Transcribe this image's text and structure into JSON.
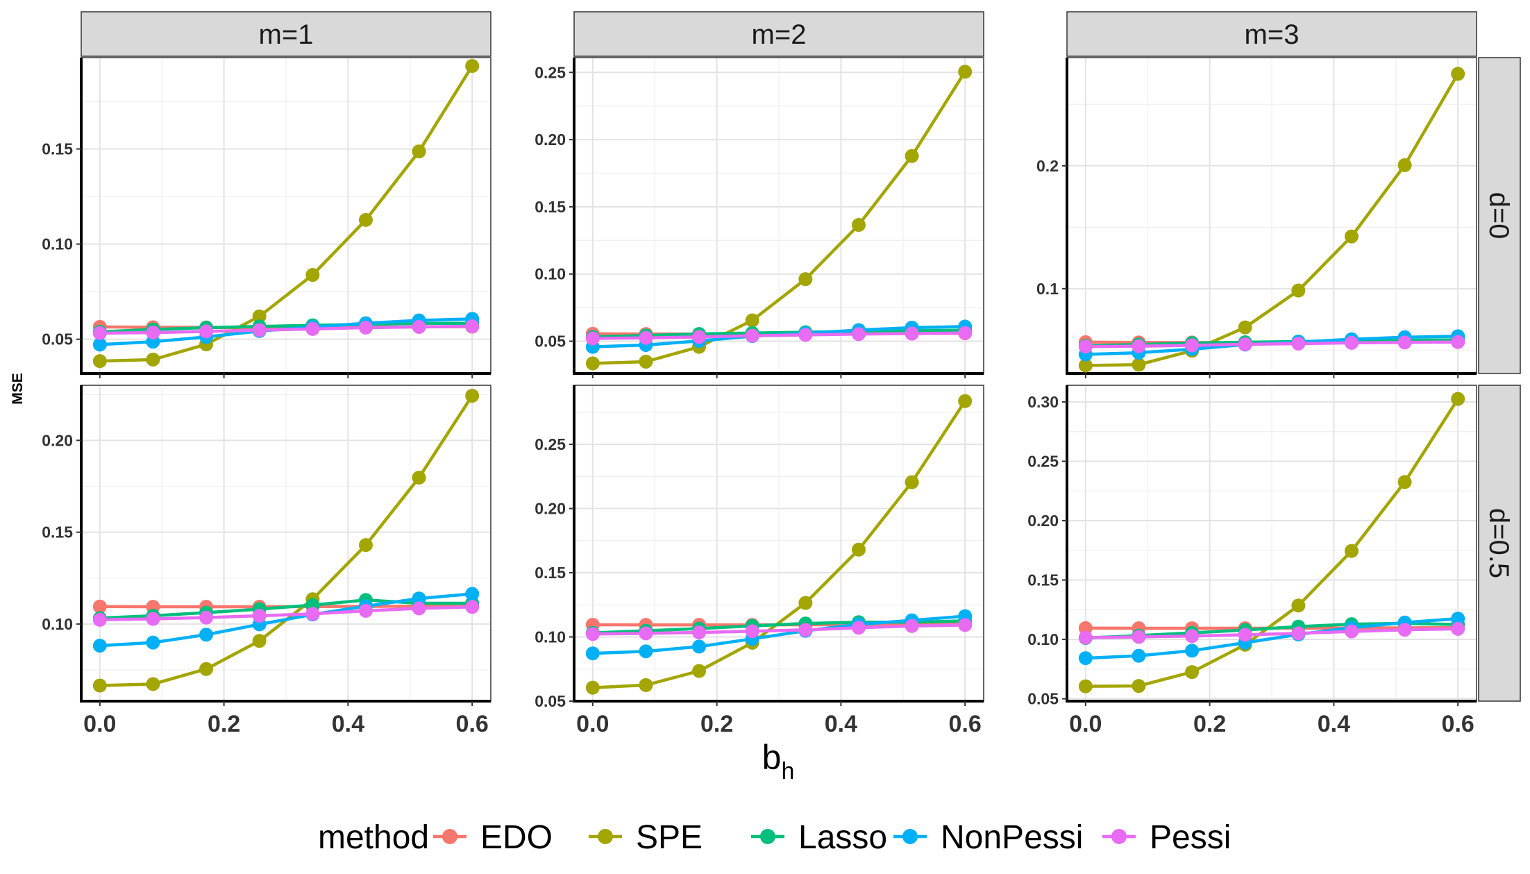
{
  "chart_data": {
    "type": "line",
    "ylabel": "MSE",
    "xlabel_main": "b",
    "xlabel_sub": "h",
    "legend": {
      "title": "method",
      "position": "bottom",
      "items": [
        "EDO",
        "SPE",
        "Lasso",
        "NonPessi",
        "Pessi"
      ]
    },
    "colors": {
      "EDO": "#F8766D",
      "SPE": "#A3A500",
      "Lasso": "#00BF7D",
      "NonPessi": "#00B0F6",
      "Pessi": "#E76BF3"
    },
    "grid": true,
    "x": [
      0.0,
      0.0857,
      0.1714,
      0.2571,
      0.3429,
      0.4286,
      0.5143,
      0.6
    ],
    "xlim": [
      -0.03,
      0.63
    ],
    "xticks": [
      0.0,
      0.2,
      0.4,
      0.6
    ],
    "xtick_labels": [
      "0.0",
      "0.2",
      "0.4",
      "0.6"
    ],
    "col_facets": [
      "m=1",
      "m=2",
      "m=3"
    ],
    "row_facets": [
      "d=0",
      "d=0.5"
    ],
    "panels": [
      {
        "col": "m=1",
        "row": "d=0",
        "ylim": [
          0.032,
          0.198
        ],
        "yticks": [
          0.05,
          0.1,
          0.15
        ],
        "ytick_labels": [
          "0.05",
          "0.10",
          "0.15"
        ],
        "series": [
          {
            "name": "EDO",
            "values": [
              0.0565,
              0.0563,
              0.0562,
              0.0561,
              0.0562,
              0.0563,
              0.0565,
              0.0566
            ]
          },
          {
            "name": "SPE",
            "values": [
              0.0385,
              0.0393,
              0.0473,
              0.062,
              0.0838,
              0.1127,
              0.1487,
              0.1936
            ]
          },
          {
            "name": "Lasso",
            "values": [
              0.0539,
              0.0551,
              0.0561,
              0.0567,
              0.0573,
              0.0578,
              0.0583,
              0.0584
            ]
          },
          {
            "name": "NonPessi",
            "values": [
              0.0472,
              0.0487,
              0.0512,
              0.0543,
              0.0564,
              0.0584,
              0.0599,
              0.0607
            ]
          },
          {
            "name": "Pessi",
            "values": [
              0.0532,
              0.0535,
              0.0541,
              0.0548,
              0.0554,
              0.0561,
              0.0565,
              0.0568
            ]
          }
        ]
      },
      {
        "col": "m=2",
        "row": "d=0",
        "ylim": [
          0.026,
          0.261
        ],
        "yticks": [
          0.05,
          0.1,
          0.15,
          0.2,
          0.25
        ],
        "ytick_labels": [
          "0.05",
          "0.10",
          "0.15",
          "0.20",
          "0.25"
        ],
        "series": [
          {
            "name": "EDO",
            "values": [
              0.0555,
              0.0554,
              0.0553,
              0.0553,
              0.0554,
              0.0556,
              0.0558,
              0.0559
            ]
          },
          {
            "name": "SPE",
            "values": [
              0.0335,
              0.0348,
              0.0458,
              0.0655,
              0.0962,
              0.1365,
              0.1878,
              0.2505
            ]
          },
          {
            "name": "Lasso",
            "values": [
              0.0532,
              0.0543,
              0.0554,
              0.0561,
              0.0567,
              0.0573,
              0.0578,
              0.0582
            ]
          },
          {
            "name": "NonPessi",
            "values": [
              0.0458,
              0.0472,
              0.0502,
              0.0538,
              0.0559,
              0.0583,
              0.0601,
              0.0609
            ]
          },
          {
            "name": "Pessi",
            "values": [
              0.0521,
              0.0525,
              0.0532,
              0.0541,
              0.0547,
              0.0553,
              0.0557,
              0.0561
            ]
          }
        ]
      },
      {
        "col": "m=3",
        "row": "d=0",
        "ylim": [
          0.031,
          0.288
        ],
        "yticks": [
          0.1,
          0.2
        ],
        "ytick_labels": [
          "0.1",
          "0.2"
        ],
        "series": [
          {
            "name": "EDO",
            "values": [
              0.0565,
              0.0563,
              0.0562,
              0.0561,
              0.0562,
              0.0564,
              0.0566,
              0.0567
            ]
          },
          {
            "name": "SPE",
            "values": [
              0.0375,
              0.0382,
              0.0495,
              0.0685,
              0.0985,
              0.1425,
              0.2005,
              0.2748
            ]
          },
          {
            "name": "Lasso",
            "values": [
              0.0535,
              0.0546,
              0.0557,
              0.0564,
              0.057,
              0.0576,
              0.058,
              0.0584
            ]
          },
          {
            "name": "NonPessi",
            "values": [
              0.0465,
              0.0479,
              0.0508,
              0.0545,
              0.0566,
              0.0588,
              0.0605,
              0.0613
            ]
          },
          {
            "name": "Pessi",
            "values": [
              0.0529,
              0.0532,
              0.0539,
              0.0547,
              0.0553,
              0.0559,
              0.0563,
              0.0566
            ]
          }
        ]
      },
      {
        "col": "m=1",
        "row": "d=0.5",
        "ylim": [
          0.058,
          0.23
        ],
        "yticks": [
          0.1,
          0.15,
          0.2
        ],
        "ytick_labels": [
          "0.10",
          "0.15",
          "0.20"
        ],
        "series": [
          {
            "name": "EDO",
            "values": [
              0.1095,
              0.1094,
              0.1094,
              0.1094,
              0.1095,
              0.1096,
              0.1097,
              0.1099
            ]
          },
          {
            "name": "SPE",
            "values": [
              0.0665,
              0.0673,
              0.0755,
              0.0908,
              0.1135,
              0.143,
              0.1797,
              0.2243
            ]
          },
          {
            "name": "Lasso",
            "values": [
              0.1032,
              0.1045,
              0.1062,
              0.1081,
              0.1103,
              0.1131,
              0.1113,
              0.1113
            ]
          },
          {
            "name": "NonPessi",
            "values": [
              0.0882,
              0.0899,
              0.0942,
              0.0998,
              0.1052,
              0.1097,
              0.1139,
              0.1164
            ]
          },
          {
            "name": "Pessi",
            "values": [
              0.1023,
              0.1028,
              0.1035,
              0.1045,
              0.1055,
              0.1072,
              0.1085,
              0.1093
            ]
          }
        ]
      },
      {
        "col": "m=2",
        "row": "d=0.5",
        "ylim": [
          0.05,
          0.296
        ],
        "yticks": [
          0.05,
          0.1,
          0.15,
          0.2,
          0.25
        ],
        "ytick_labels": [
          "0.05",
          "0.10",
          "0.15",
          "0.20",
          "0.25"
        ],
        "series": [
          {
            "name": "EDO",
            "values": [
              0.1095,
              0.1094,
              0.1094,
              0.1094,
              0.1095,
              0.1096,
              0.1097,
              0.1099
            ]
          },
          {
            "name": "SPE",
            "values": [
              0.0605,
              0.0625,
              0.0735,
              0.0955,
              0.1265,
              0.168,
              0.2205,
              0.2837
            ]
          },
          {
            "name": "Lasso",
            "values": [
              0.1032,
              0.1048,
              0.1065,
              0.1086,
              0.1105,
              0.1115,
              0.1115,
              0.1125
            ]
          },
          {
            "name": "NonPessi",
            "values": [
              0.0872,
              0.0888,
              0.0925,
              0.0985,
              0.1048,
              0.1098,
              0.1129,
              0.1162
            ]
          },
          {
            "name": "Pessi",
            "values": [
              0.1023,
              0.1028,
              0.1035,
              0.1045,
              0.1055,
              0.1072,
              0.1085,
              0.1093
            ]
          }
        ]
      },
      {
        "col": "m=3",
        "row": "d=0.5",
        "ylim": [
          0.048,
          0.314
        ],
        "yticks": [
          0.05,
          0.1,
          0.15,
          0.2,
          0.25,
          0.3
        ],
        "ytick_labels": [
          "0.05",
          "0.10",
          "0.15",
          "0.20",
          "0.25",
          "0.30"
        ],
        "series": [
          {
            "name": "EDO",
            "values": [
              0.1095,
              0.1094,
              0.1094,
              0.1094,
              0.1095,
              0.1096,
              0.1097,
              0.1099
            ]
          },
          {
            "name": "SPE",
            "values": [
              0.0605,
              0.0608,
              0.0725,
              0.0955,
              0.1285,
              0.1745,
              0.2325,
              0.3025
            ]
          },
          {
            "name": "Lasso",
            "values": [
              0.1012,
              0.1032,
              0.1055,
              0.1079,
              0.1108,
              0.1128,
              0.1135,
              0.1125
            ]
          },
          {
            "name": "NonPessi",
            "values": [
              0.0842,
              0.0862,
              0.0905,
              0.0972,
              0.1042,
              0.1098,
              0.1142,
              0.1175
            ]
          },
          {
            "name": "Pessi",
            "values": [
              0.1015,
              0.1021,
              0.1028,
              0.1039,
              0.1051,
              0.1067,
              0.1081,
              0.1089
            ]
          }
        ]
      }
    ]
  }
}
